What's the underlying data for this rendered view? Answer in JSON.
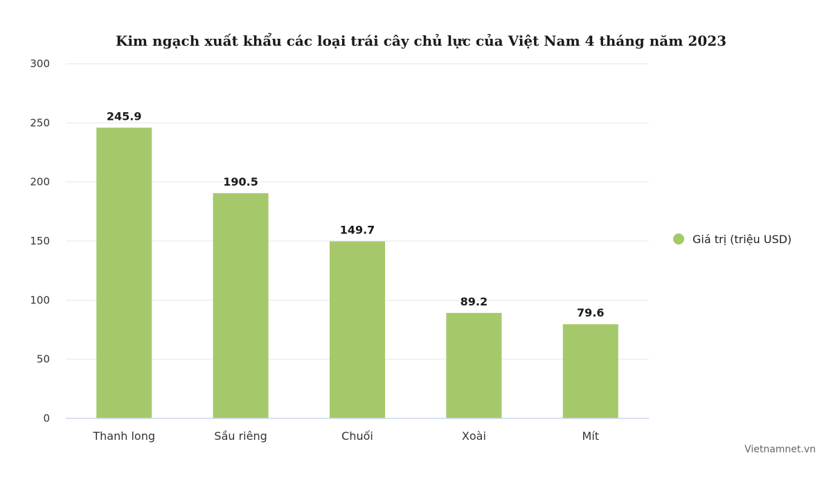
{
  "chart_data": {
    "type": "bar",
    "title": "Kim ngạch xuất khẩu các loại trái cây chủ lực của Việt Nam 4 tháng năm 2023",
    "categories": [
      "Thanh long",
      "Sầu riêng",
      "Chuối",
      "Xoài",
      "Mít"
    ],
    "series": [
      {
        "name": "Giá trị (triệu USD)",
        "values": [
          245.9,
          190.5,
          149.7,
          89.2,
          79.6
        ],
        "color": "#a5c96a"
      }
    ],
    "data_labels": [
      "245.9",
      "190.5",
      "149.7",
      "89.2",
      "79.6"
    ],
    "yticks": [
      "0",
      "50",
      "100",
      "150",
      "200",
      "250",
      "300"
    ],
    "ylim": [
      0,
      300
    ],
    "xlabel": "",
    "ylabel": "",
    "grid": true,
    "legend_position": "right"
  },
  "source": "Vietnamnet.vn",
  "colors": {
    "bar": "#a5c96a",
    "grid": "#e6e6e6",
    "axis": "#ccd6eb"
  }
}
